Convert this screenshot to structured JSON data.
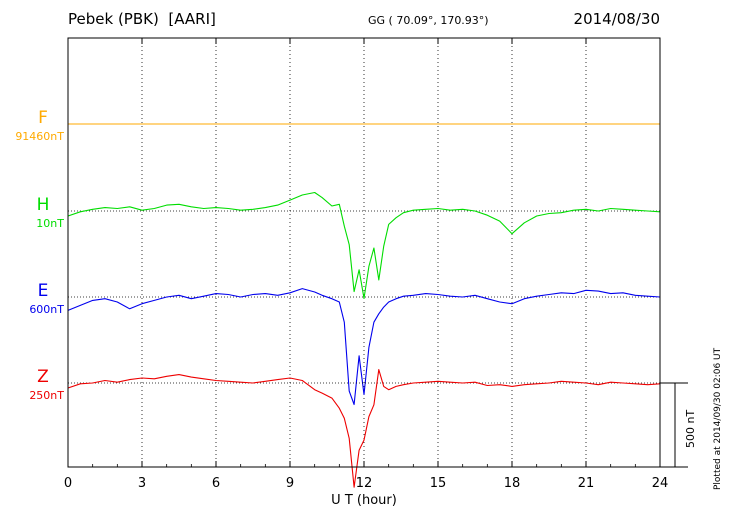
{
  "header": {
    "station": "Pebek (PBK)  [AARI]",
    "coords": "GG ( 70.09°, 170.93°)",
    "date": "2014/08/30"
  },
  "footer": {
    "plotted": "Plotted at 2014/09/30 02:06 UT",
    "scale_label": "500 nT"
  },
  "chart_data": {
    "type": "line",
    "xlabel": "U T (hour)",
    "xlim": [
      0,
      24
    ],
    "xticks": [
      "0",
      "3",
      "6",
      "9",
      "12",
      "15",
      "18",
      "21",
      "24"
    ],
    "grid": true,
    "scale_bar_nT": 500,
    "series": [
      {
        "name": "F",
        "baseline_label": "91460nT",
        "color": "#ffaa00",
        "x": [
          0,
          24
        ],
        "y": [
          0,
          0
        ]
      },
      {
        "name": "H",
        "baseline_label": "10nT",
        "color": "#00dd00",
        "x": [
          0,
          0.5,
          1,
          1.5,
          2,
          2.5,
          3,
          3.5,
          4,
          4.5,
          5,
          5.5,
          6,
          6.5,
          7,
          7.5,
          8,
          8.5,
          9,
          9.5,
          10,
          10.3,
          10.7,
          11,
          11.2,
          11.4,
          11.6,
          11.8,
          12,
          12.2,
          12.4,
          12.6,
          12.8,
          13,
          13.3,
          13.6,
          14,
          14.5,
          15,
          15.5,
          16,
          16.5,
          17,
          17.5,
          18,
          18.5,
          19,
          19.5,
          20,
          20.5,
          21,
          21.5,
          22,
          22.5,
          23,
          23.5,
          24
        ],
        "y": [
          -30,
          -5,
          10,
          20,
          15,
          25,
          5,
          15,
          35,
          40,
          25,
          15,
          20,
          15,
          5,
          10,
          20,
          35,
          65,
          95,
          110,
          80,
          30,
          40,
          -90,
          -200,
          -480,
          -350,
          -520,
          -330,
          -220,
          -410,
          -210,
          -80,
          -40,
          -10,
          5,
          10,
          15,
          5,
          10,
          0,
          -25,
          -60,
          -135,
          -70,
          -30,
          -15,
          -10,
          5,
          10,
          0,
          15,
          10,
          5,
          0,
          -5
        ]
      },
      {
        "name": "E",
        "baseline_label": "600nT",
        "color": "#0000ee",
        "x": [
          0,
          0.5,
          1,
          1.5,
          2,
          2.5,
          3,
          3.5,
          4,
          4.5,
          5,
          5.5,
          6,
          6.5,
          7,
          7.5,
          8,
          8.5,
          9,
          9.5,
          10,
          10.3,
          10.7,
          11,
          11.2,
          11.4,
          11.6,
          11.8,
          12,
          12.2,
          12.4,
          12.6,
          12.8,
          13,
          13.3,
          13.6,
          14,
          14.5,
          15,
          15.5,
          16,
          16.5,
          17,
          17.5,
          18,
          18.5,
          19,
          19.5,
          20,
          20.5,
          21,
          21.5,
          22,
          22.5,
          23,
          23.5,
          24
        ],
        "y": [
          -80,
          -50,
          -20,
          -10,
          -30,
          -70,
          -40,
          -20,
          0,
          10,
          -10,
          5,
          20,
          15,
          0,
          15,
          20,
          10,
          25,
          50,
          30,
          10,
          -10,
          -30,
          -150,
          -560,
          -640,
          -350,
          -580,
          -300,
          -150,
          -100,
          -60,
          -30,
          -10,
          5,
          10,
          20,
          15,
          5,
          0,
          10,
          -10,
          -30,
          -40,
          -10,
          5,
          15,
          25,
          20,
          40,
          35,
          20,
          25,
          10,
          5,
          0
        ]
      },
      {
        "name": "Z",
        "baseline_label": "250nT",
        "color": "#ee0000",
        "x": [
          0,
          0.5,
          1,
          1.5,
          2,
          2.5,
          3,
          3.5,
          4,
          4.5,
          5,
          5.5,
          6,
          6.5,
          7,
          7.5,
          8,
          8.5,
          9,
          9.5,
          10,
          10.3,
          10.7,
          11,
          11.2,
          11.4,
          11.6,
          11.8,
          12,
          12.2,
          12.4,
          12.6,
          12.8,
          13,
          13.3,
          13.6,
          14,
          14.5,
          15,
          15.5,
          16,
          16.5,
          17,
          17.5,
          18,
          18.5,
          19,
          19.5,
          20,
          20.5,
          21,
          21.5,
          22,
          22.5,
          23,
          23.5,
          24
        ],
        "y": [
          -30,
          -5,
          0,
          15,
          5,
          20,
          30,
          25,
          40,
          50,
          35,
          25,
          15,
          10,
          5,
          0,
          10,
          20,
          30,
          15,
          -40,
          -60,
          -90,
          -150,
          -210,
          -330,
          -620,
          -400,
          -340,
          -200,
          -130,
          80,
          -20,
          -40,
          -20,
          -10,
          0,
          5,
          10,
          5,
          0,
          5,
          -15,
          -10,
          -20,
          -10,
          -5,
          0,
          10,
          5,
          0,
          -10,
          5,
          0,
          -5,
          -10,
          -5
        ]
      }
    ]
  }
}
